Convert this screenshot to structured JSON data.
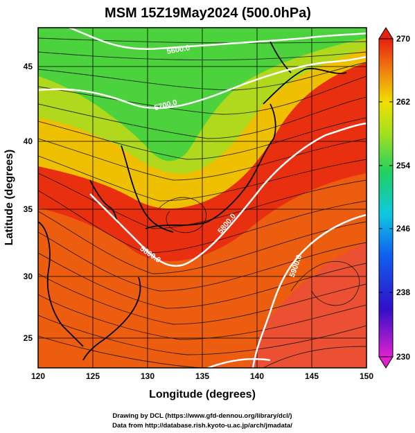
{
  "title": "MSM 15Z19May2024 (500.0hPa)",
  "x_axis": {
    "label": "Longitude (degrees)",
    "ticks": [
      "120",
      "125",
      "130",
      "135",
      "140",
      "145",
      "150"
    ]
  },
  "y_axis": {
    "label": "Latitude  (degrees)",
    "ticks": [
      "25",
      "30",
      "35",
      "40",
      "45"
    ]
  },
  "colorbar": {
    "ticks": [
      "270",
      "262",
      "254",
      "246",
      "238",
      "230"
    ]
  },
  "contour_labels": [
    "5600.0",
    "5700.0",
    "5800.0",
    "5800.0",
    "5900.0"
  ],
  "credits": {
    "line1": "Drawing by DCL (https://www.gfd-dennou.org/library/dcl/)",
    "line2": "Data from http://database.rish.kyoto-u.ac.jp/arch/jmadata/"
  },
  "chart_data": {
    "type": "heatmap",
    "title": "MSM 15Z19May2024 (500.0hPa)",
    "xlabel": "Longitude (degrees)",
    "ylabel": "Latitude  (degrees)",
    "xlim": [
      120,
      150
    ],
    "ylim": [
      22.5,
      47.5
    ],
    "color_range": [
      230,
      270
    ],
    "colorbar_ticks": [
      270,
      262,
      254,
      246,
      238,
      230
    ],
    "contour_labels": [
      "5600.0",
      "5700.0",
      "5800.0",
      "5800.0",
      "5900.0"
    ],
    "overlays": [
      "wind streamlines",
      "geopotential height contours (white)",
      "coastlines"
    ],
    "colors": {
      "low": "#e020d0",
      "mid_low": "#1040e0",
      "mid": "#20d060",
      "mid_high": "#f0e000",
      "high": "#e82010"
    }
  }
}
